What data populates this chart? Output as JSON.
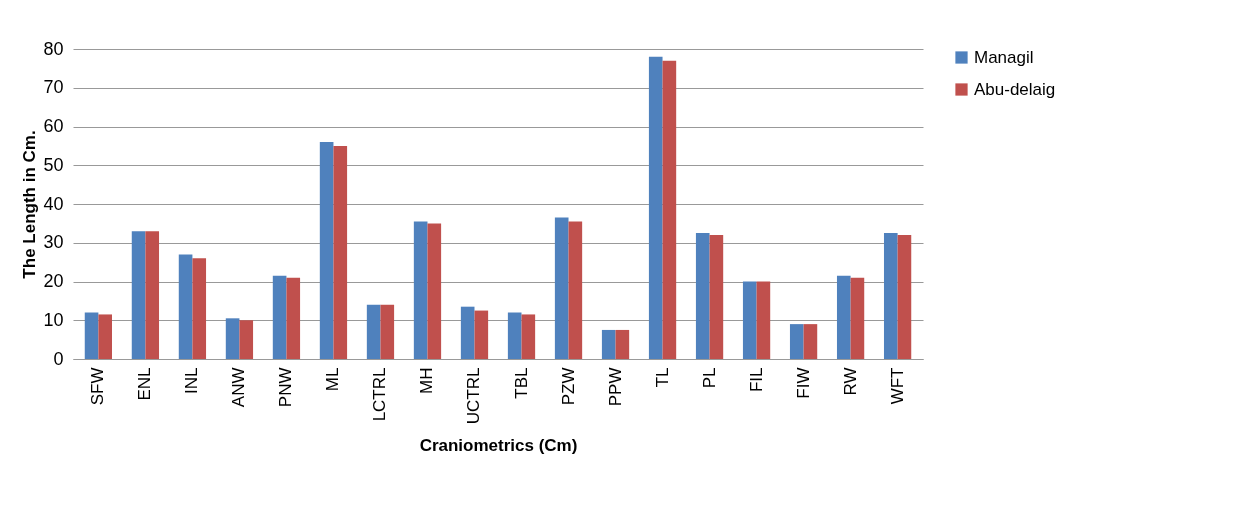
{
  "chart_data": {
    "type": "bar",
    "xlabel": "Craniometrics (Cm)",
    "ylabel": "The Length in Cm.",
    "categories": [
      "SFW",
      "ENL",
      "INL",
      "ANW",
      "PNW",
      "ML",
      "LCTRL",
      "MH",
      "UCTRL",
      "TBL",
      "PZW",
      "PPW",
      "TL",
      "PL",
      "FIL",
      "FIW",
      "RW",
      "WFT"
    ],
    "series": [
      {
        "name": "Managil",
        "color": "#4f81bd",
        "values": [
          12,
          33,
          27,
          10.5,
          21.5,
          56,
          14,
          35.5,
          13.5,
          12,
          36.5,
          7.5,
          78,
          32.5,
          20,
          9,
          21.5,
          32.5
        ]
      },
      {
        "name": "Abu-delaig",
        "color": "#c0504d",
        "values": [
          11.5,
          33,
          26,
          10,
          21,
          55,
          14,
          35,
          12.5,
          11.5,
          35.5,
          7.5,
          77,
          32,
          20,
          9,
          21,
          32
        ]
      }
    ],
    "ylim": [
      0,
      80
    ],
    "yticks": [
      0,
      10,
      20,
      30,
      40,
      50,
      60,
      70,
      80
    ],
    "grid": "y",
    "legend": "right"
  }
}
